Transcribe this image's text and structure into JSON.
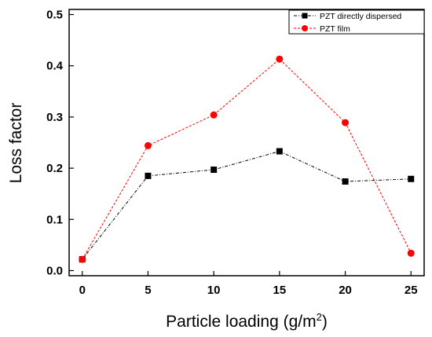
{
  "chart_data": {
    "type": "line",
    "title": "",
    "xlabel": "Particle loading (g/m",
    "xlabel_superscript": "2",
    "xlabel_suffix": ")",
    "ylabel": "Loss factor",
    "x": [
      0,
      5,
      10,
      15,
      20,
      25
    ],
    "x_ticks": [
      "0",
      "5",
      "10",
      "15",
      "20",
      "25"
    ],
    "y_ticks": [
      "0.0",
      "0.1",
      "0.2",
      "0.3",
      "0.4",
      "0.5"
    ],
    "xlim": [
      -1,
      26
    ],
    "ylim": [
      -0.01,
      0.51
    ],
    "grid": false,
    "legend_position": "top-right",
    "series": [
      {
        "name": "PZT directly dispersed",
        "values": [
          0.022,
          0.185,
          0.197,
          0.233,
          0.174,
          0.179
        ],
        "color": "#000000",
        "marker": "square",
        "line_style": "dash-dot"
      },
      {
        "name": "PZT film",
        "values": [
          0.022,
          0.244,
          0.304,
          0.413,
          0.289,
          0.034
        ],
        "color": "#ff0000",
        "marker": "circle",
        "line_style": "dashed"
      }
    ]
  }
}
